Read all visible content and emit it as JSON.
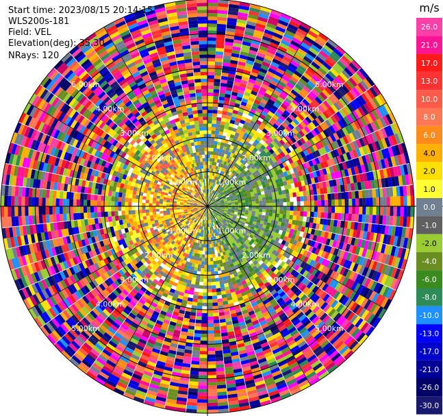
{
  "info": {
    "start_time": "Start time: 2023/08/15 20:14:15",
    "instrument": "WLS200s-181",
    "field": "Field: VEL",
    "elevation": "Elevation(deg): 35.30",
    "nrays": "NRays: 120"
  },
  "colorbar": {
    "unit": "m/s",
    "levels": [
      "26.0",
      "21.0",
      "17.0",
      "13.0",
      "10.0",
      "8.0",
      "6.0",
      "4.0",
      "2.0",
      "1.0",
      "0.0",
      "-1.0",
      "-2.0",
      "-4.0",
      "-6.0",
      "-8.0",
      "-10.0",
      "-13.0",
      "-17.0",
      "-21.0",
      "-26.0",
      "-30.0"
    ],
    "colors": [
      "#ff3fa8",
      "#ff1493",
      "#ff1a1a",
      "#ff3333",
      "#ff5a4a",
      "#ff7755",
      "#ff8c1a",
      "#ffb000",
      "#ffe000",
      "#ffff33",
      "#708090",
      "#606060",
      "#9acd32",
      "#6b8e23",
      "#3a8a1f",
      "#2e8b57",
      "#1e90ff",
      "#0000ff",
      "#0000cd",
      "#000099",
      "#000066",
      "#191970"
    ]
  },
  "chart_data": {
    "type": "heatmap",
    "subtype": "radar-ppi-polar",
    "field": "VEL",
    "unit": "m/s",
    "nrays": 120,
    "elevation_deg": 35.3,
    "range_rings_km": [
      1.0,
      2.0,
      3.0,
      4.0,
      5.0
    ],
    "ring_labels": [
      "1.00km",
      "2.00km",
      "3.00km",
      "4.00km",
      "5.00km"
    ],
    "max_range_km": 6.0,
    "color_scale_min": -30.0,
    "color_scale_max": 26.0,
    "notes": "Near field (<~2km) shows coherent velocities: approx +2 to +10 m/s (yellow/orange) on west side, -1 to -6 m/s (greens) on east side, ~0 m/s (grey) patches; beyond ~2.5 km values are noisy across full scale."
  }
}
